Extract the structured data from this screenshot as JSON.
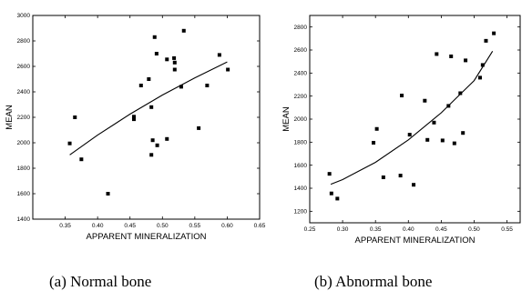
{
  "chart_data": [
    {
      "type": "scatter",
      "caption": "(a) Normal bone",
      "xlabel": "APPARENT MINERALIZATION",
      "ylabel": "MEAN",
      "xlim": [
        0.3,
        0.65
      ],
      "ylim": [
        1400,
        3000
      ],
      "xticks": [
        "0.35",
        "0.40",
        "0.45",
        "0.50",
        "0.55",
        "0.60",
        "0.65"
      ],
      "yticks": [
        "1400",
        "1600",
        "1800",
        "2000",
        "2200",
        "2400",
        "2600",
        "2800",
        "3000"
      ],
      "grid": false,
      "points": [
        {
          "x": 0.357,
          "y": 1995
        },
        {
          "x": 0.365,
          "y": 2200
        },
        {
          "x": 0.375,
          "y": 1870
        },
        {
          "x": 0.416,
          "y": 1600
        },
        {
          "x": 0.456,
          "y": 2185
        },
        {
          "x": 0.456,
          "y": 2205
        },
        {
          "x": 0.467,
          "y": 2450
        },
        {
          "x": 0.479,
          "y": 2500
        },
        {
          "x": 0.483,
          "y": 2280
        },
        {
          "x": 0.485,
          "y": 2020
        },
        {
          "x": 0.483,
          "y": 1905
        },
        {
          "x": 0.488,
          "y": 2830
        },
        {
          "x": 0.491,
          "y": 2700
        },
        {
          "x": 0.492,
          "y": 1980
        },
        {
          "x": 0.507,
          "y": 2030
        },
        {
          "x": 0.507,
          "y": 2655
        },
        {
          "x": 0.518,
          "y": 2665
        },
        {
          "x": 0.519,
          "y": 2575
        },
        {
          "x": 0.519,
          "y": 2630
        },
        {
          "x": 0.529,
          "y": 2440
        },
        {
          "x": 0.533,
          "y": 2880
        },
        {
          "x": 0.556,
          "y": 2115
        },
        {
          "x": 0.569,
          "y": 2450
        },
        {
          "x": 0.588,
          "y": 2690
        },
        {
          "x": 0.601,
          "y": 2575
        }
      ],
      "fit": [
        {
          "x": 0.357,
          "y": 1905
        },
        {
          "x": 0.4,
          "y": 2060
        },
        {
          "x": 0.45,
          "y": 2225
        },
        {
          "x": 0.5,
          "y": 2375
        },
        {
          "x": 0.55,
          "y": 2510
        },
        {
          "x": 0.6,
          "y": 2635
        }
      ]
    },
    {
      "type": "scatter",
      "caption": "(b) Abnormal bone",
      "xlabel": "APPARENT MINERALIZATION",
      "ylabel": "MEAN",
      "xlim": [
        0.25,
        0.57
      ],
      "ylim": [
        1100,
        2900
      ],
      "xticks": [
        "0.25",
        "0.30",
        "0.35",
        "0.40",
        "0.45",
        "0.50",
        "0.55"
      ],
      "yticks": [
        "1200",
        "1400",
        "1600",
        "1800",
        "2000",
        "2200",
        "2400",
        "2600",
        "2800"
      ],
      "grid": false,
      "points": [
        {
          "x": 0.28,
          "y": 1525
        },
        {
          "x": 0.283,
          "y": 1355
        },
        {
          "x": 0.292,
          "y": 1310
        },
        {
          "x": 0.347,
          "y": 1795
        },
        {
          "x": 0.352,
          "y": 1915
        },
        {
          "x": 0.362,
          "y": 1495
        },
        {
          "x": 0.388,
          "y": 1510
        },
        {
          "x": 0.39,
          "y": 2205
        },
        {
          "x": 0.402,
          "y": 1865
        },
        {
          "x": 0.408,
          "y": 1430
        },
        {
          "x": 0.425,
          "y": 2160
        },
        {
          "x": 0.429,
          "y": 1820
        },
        {
          "x": 0.439,
          "y": 1970
        },
        {
          "x": 0.443,
          "y": 2565
        },
        {
          "x": 0.452,
          "y": 1815
        },
        {
          "x": 0.461,
          "y": 2115
        },
        {
          "x": 0.465,
          "y": 2545
        },
        {
          "x": 0.47,
          "y": 1790
        },
        {
          "x": 0.479,
          "y": 2225
        },
        {
          "x": 0.483,
          "y": 1880
        },
        {
          "x": 0.487,
          "y": 2510
        },
        {
          "x": 0.509,
          "y": 2360
        },
        {
          "x": 0.513,
          "y": 2470
        },
        {
          "x": 0.518,
          "y": 2680
        },
        {
          "x": 0.53,
          "y": 2745
        }
      ],
      "fit": [
        {
          "x": 0.282,
          "y": 1435
        },
        {
          "x": 0.3,
          "y": 1475
        },
        {
          "x": 0.35,
          "y": 1625
        },
        {
          "x": 0.4,
          "y": 1820
        },
        {
          "x": 0.45,
          "y": 2055
        },
        {
          "x": 0.5,
          "y": 2335
        },
        {
          "x": 0.528,
          "y": 2590
        }
      ]
    }
  ]
}
